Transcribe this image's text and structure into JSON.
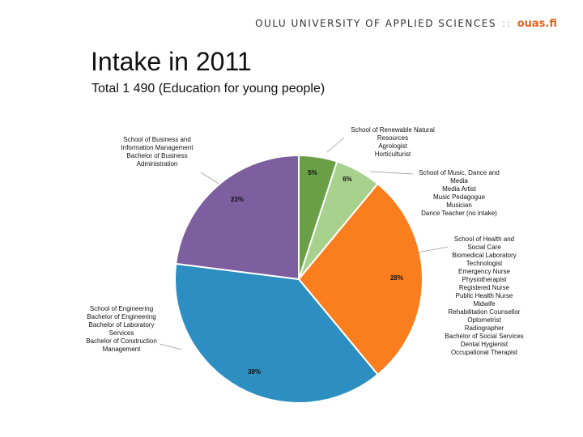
{
  "header": {
    "institution": "OULU UNIVERSITY OF APPLIED SCIENCES",
    "separator": "::",
    "logo": "ouas.fi",
    "logo_color": "#e8641b"
  },
  "chart_data": {
    "type": "pie",
    "title": "Intake in 2011",
    "subtitle": "Total 1 490 (Education for young people)",
    "slices": [
      {
        "school": "School of Renewable Natural Resources",
        "value": 5,
        "label": "5%",
        "color": "#6a9e47",
        "programmes": [
          "Agrologist",
          "Horticulturist"
        ]
      },
      {
        "school": "School of Music, Dance and Media",
        "value": 6,
        "label": "6%",
        "color": "#a9d18e",
        "programmes": [
          "Media Artist",
          "Music Pedagogue",
          "Musician",
          "Dance Teacher (no intake)"
        ]
      },
      {
        "school": "School of Health and Social Care",
        "value": 28,
        "label": "28%",
        "color": "#fa7d1e",
        "programmes": [
          "Biomedical Laboratory",
          "Technologist",
          "Emergency Nurse",
          "Physiotherapist",
          "Registered Nurse",
          "Public Health Nurse",
          "Midwife",
          "Rehabilitation Counsellor",
          "Optometrist",
          "Radiographer",
          "Bachelor of Social Services",
          "Dental Hygienist",
          "Occupational Therapist"
        ]
      },
      {
        "school": "School of Engineering",
        "value": 38,
        "label": "38%",
        "color": "#2d8fc1",
        "programmes": [
          "Bachelor of Engineering",
          "Bachelor of Laboratory",
          "Services",
          "Bachelor of Construction",
          "Management"
        ]
      },
      {
        "school": "School of Business and Information Management",
        "value": 23,
        "label": "23%",
        "color": "#7d5e9e",
        "programmes": [
          "Bachelor of Business",
          "Administration"
        ]
      }
    ]
  }
}
